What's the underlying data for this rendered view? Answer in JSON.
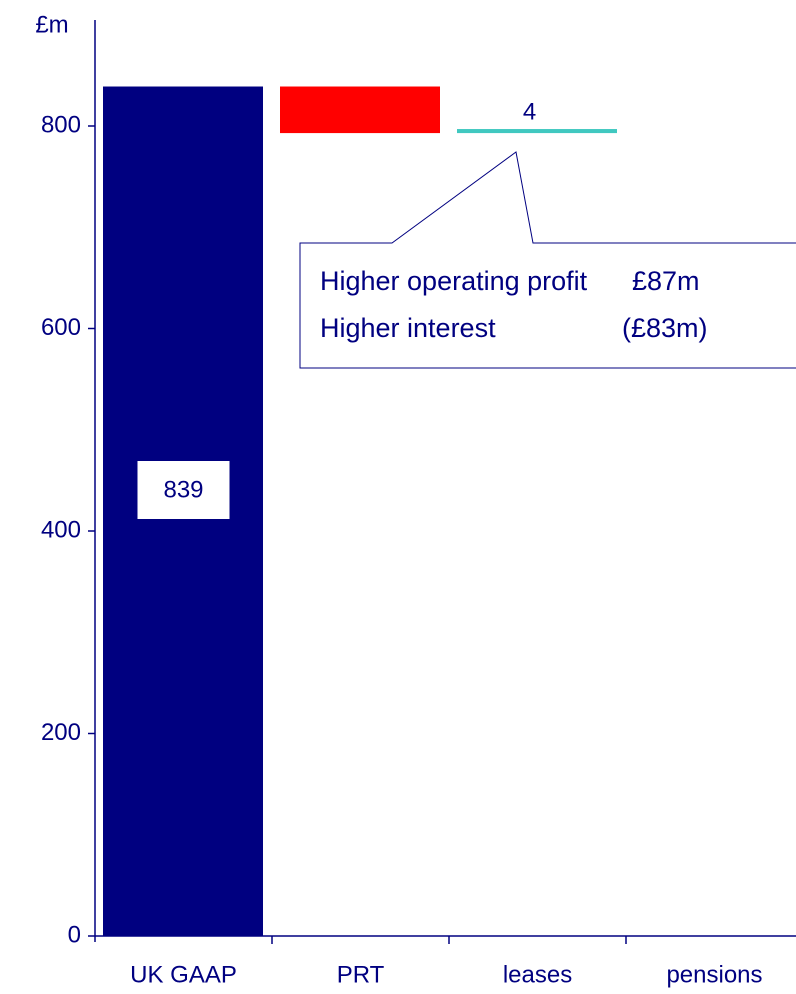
{
  "chart_data": {
    "type": "waterfall",
    "y_label": "£m",
    "categories": [
      "UK GAAP",
      "PRT",
      "leases",
      "pensions"
    ],
    "values": [
      839,
      -46,
      4,
      null
    ],
    "value_labels": [
      "839",
      null,
      "4",
      null
    ],
    "colors": [
      "#000080",
      "#ff0000",
      "#40c8c0",
      null
    ],
    "ylim": [
      0,
      910
    ],
    "yticks": [
      0,
      200,
      400,
      600,
      800
    ],
    "annotations": [
      {
        "text": "Higher operating profit",
        "amount": "£87m"
      },
      {
        "text": "Higher interest",
        "amount": "(£83m)"
      }
    ]
  }
}
